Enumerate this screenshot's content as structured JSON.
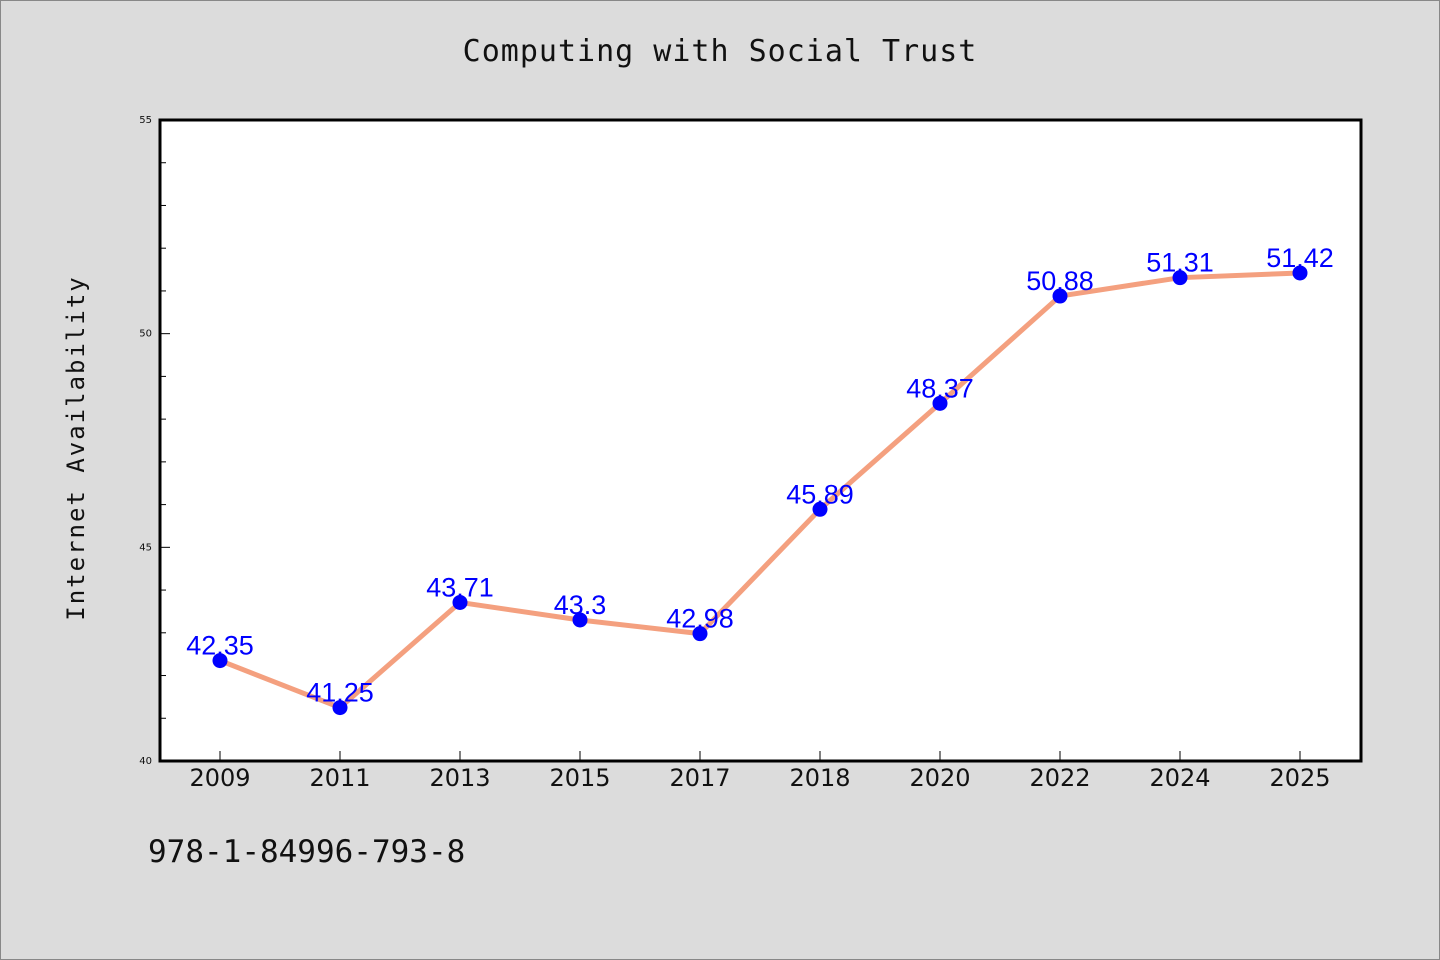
{
  "chart_data": {
    "type": "line",
    "title": "Computing with Social Trust",
    "xlabel": "",
    "ylabel": "Internet Availability",
    "categories": [
      "2009",
      "2011",
      "2013",
      "2015",
      "2017",
      "2018",
      "2020",
      "2022",
      "2024",
      "2025"
    ],
    "series": [
      {
        "values": [
          42.35,
          41.25,
          43.71,
          43.3,
          42.98,
          45.89,
          48.37,
          50.88,
          51.31,
          51.42
        ],
        "labels": [
          "42.35",
          "41.25",
          "43.71",
          "43.3",
          "42.98",
          "45.89",
          "48.37",
          "50.88",
          "51.31",
          "51.42"
        ]
      }
    ],
    "ylim": [
      40,
      55
    ],
    "yticks": [
      "40",
      "45",
      "50",
      "55"
    ],
    "grid": false,
    "legend": "none",
    "colors": {
      "line": "#f4a07f",
      "marker": "#0000ff",
      "data_label": "#0000ff",
      "background": "#dcdcdc",
      "plot_area": "#ffffff"
    }
  },
  "footer": {
    "code": "978-1-84996-793-8"
  }
}
